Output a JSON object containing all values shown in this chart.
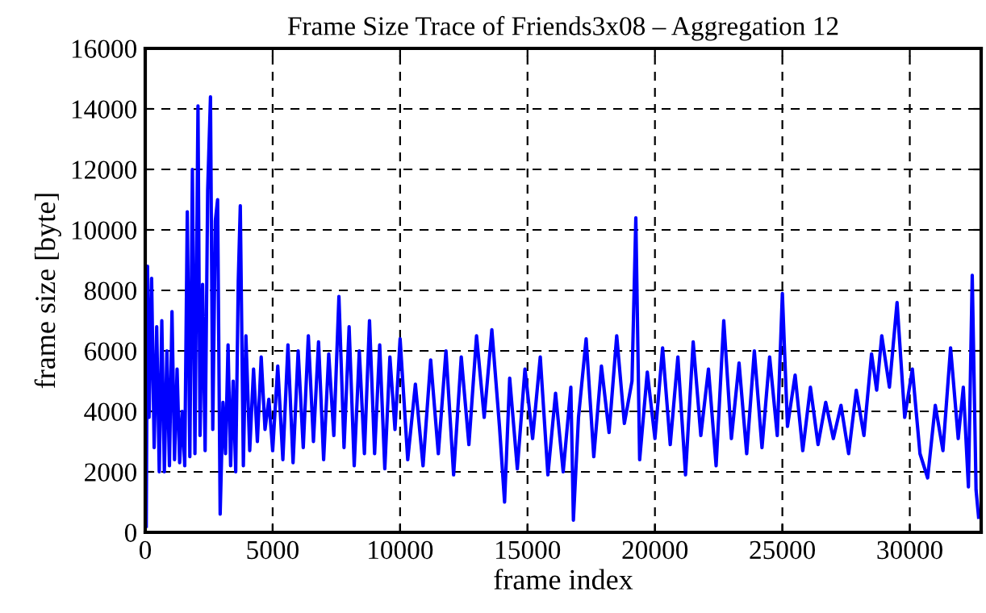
{
  "chart_data": {
    "type": "line",
    "title": "Frame Size Trace of Friends3x08 – Aggregation 12",
    "xlabel": "frame index",
    "ylabel": "frame size [byte]",
    "xlim": [
      0,
      32800
    ],
    "ylim": [
      0,
      16000
    ],
    "xticks": [
      0,
      5000,
      10000,
      15000,
      20000,
      25000,
      30000
    ],
    "yticks": [
      0,
      2000,
      4000,
      6000,
      8000,
      10000,
      12000,
      14000,
      16000
    ],
    "grid": true,
    "legend": false,
    "line_style": "solid",
    "series": [
      {
        "color": "#0000ff",
        "x": [
          40,
          90,
          150,
          250,
          350,
          450,
          550,
          650,
          750,
          850,
          950,
          1050,
          1150,
          1250,
          1350,
          1450,
          1550,
          1650,
          1750,
          1850,
          1950,
          2070,
          2150,
          2250,
          2350,
          2450,
          2560,
          2650,
          2750,
          2840,
          2940,
          3050,
          3150,
          3250,
          3350,
          3450,
          3550,
          3650,
          3730,
          3850,
          3950,
          4100,
          4250,
          4400,
          4550,
          4700,
          4850,
          5000,
          5200,
          5400,
          5600,
          5800,
          6000,
          6200,
          6400,
          6600,
          6800,
          7000,
          7200,
          7400,
          7600,
          7800,
          8000,
          8200,
          8400,
          8600,
          8800,
          9000,
          9200,
          9400,
          9600,
          9800,
          10000,
          10300,
          10600,
          10900,
          11200,
          11500,
          11800,
          12100,
          12400,
          12700,
          13000,
          13300,
          13600,
          13900,
          14100,
          14300,
          14600,
          14900,
          15200,
          15500,
          15800,
          16100,
          16400,
          16700,
          16800,
          17000,
          17300,
          17600,
          17900,
          18200,
          18500,
          18800,
          19100,
          19250,
          19400,
          19700,
          20000,
          20300,
          20600,
          20900,
          21200,
          21500,
          21800,
          22100,
          22400,
          22700,
          23000,
          23300,
          23600,
          23900,
          24200,
          24500,
          24800,
          25000,
          25200,
          25500,
          25800,
          26100,
          26400,
          26700,
          27000,
          27300,
          27600,
          27900,
          28200,
          28500,
          28700,
          28900,
          29200,
          29500,
          29800,
          30100,
          30400,
          30700,
          31000,
          31300,
          31600,
          31900,
          32100,
          32300,
          32450,
          32600,
          32700
        ],
        "values": [
          200,
          8800,
          3800,
          8400,
          2800,
          6800,
          2000,
          7000,
          2000,
          6000,
          2200,
          7300,
          2400,
          5400,
          2300,
          4000,
          2200,
          10600,
          2500,
          12000,
          2600,
          14100,
          3200,
          8200,
          2700,
          11300,
          14400,
          3400,
          10300,
          11000,
          600,
          4300,
          2600,
          6200,
          2200,
          5000,
          2000,
          8300,
          10800,
          2200,
          6500,
          2700,
          5400,
          3000,
          5800,
          3400,
          4400,
          2700,
          5500,
          2400,
          6200,
          2300,
          6000,
          2800,
          6500,
          3000,
          6300,
          2400,
          5900,
          3200,
          7800,
          2800,
          6800,
          2200,
          6000,
          2600,
          7000,
          2600,
          6200,
          2100,
          5800,
          3400,
          6400,
          2400,
          4900,
          2200,
          5700,
          2600,
          6000,
          1900,
          5800,
          2900,
          6500,
          3800,
          6700,
          3500,
          1000,
          5100,
          2100,
          5400,
          3100,
          5800,
          1900,
          4600,
          2000,
          4800,
          400,
          3800,
          6400,
          2500,
          5500,
          3300,
          6500,
          3600,
          5000,
          10400,
          2400,
          5300,
          3100,
          6100,
          2900,
          5800,
          1900,
          6300,
          3200,
          5400,
          2200,
          7000,
          3100,
          5600,
          2600,
          6000,
          2800,
          5800,
          3200,
          7900,
          3500,
          5200,
          2700,
          4800,
          2900,
          4300,
          3100,
          4200,
          2600,
          4700,
          3200,
          5900,
          4700,
          6500,
          4800,
          7600,
          3800,
          5400,
          2600,
          1800,
          4200,
          2700,
          6100,
          3100,
          4800,
          1500,
          8500,
          1400,
          500
        ]
      }
    ]
  }
}
